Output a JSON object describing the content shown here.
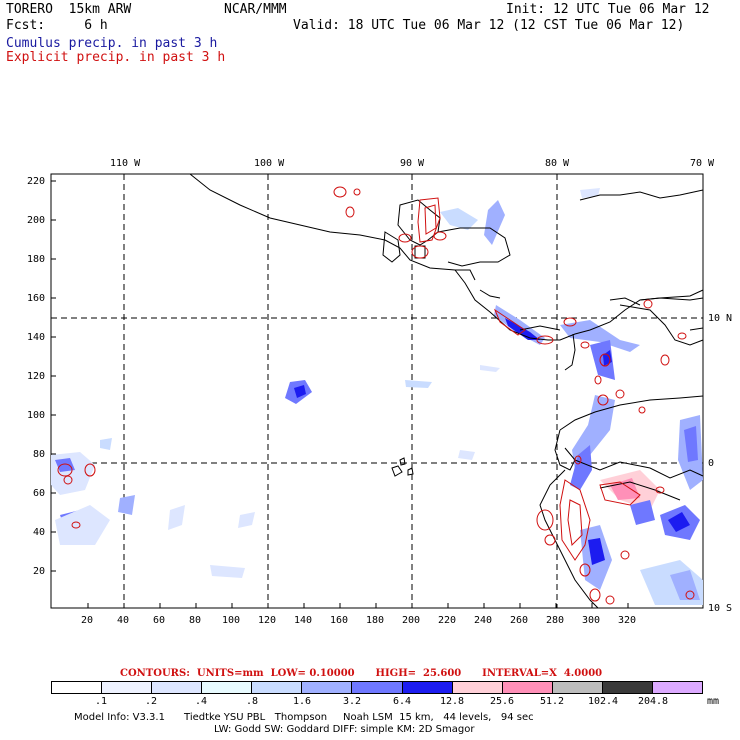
{
  "header": {
    "model": "TORERO  15km ARW",
    "org": "NCAR/MMM",
    "init": "Init: 12 UTC Tue 06 Mar 12",
    "fcst": "Fcst:     6 h",
    "valid": "Valid: 18 UTC Tue 06 Mar 12 (12 CST Tue 06 Mar 12)",
    "field1": "Cumulus precip. in past 3 h",
    "field2": "Explicit precip. in past 3 h"
  },
  "map": {
    "lon_labels": [
      "110 W",
      "100 W",
      "90 W",
      "80 W",
      "70 W"
    ],
    "lat_labels": [
      "10 N",
      "0",
      "10 S"
    ],
    "y_ticks": [
      "220",
      "200",
      "180",
      "160",
      "140",
      "120",
      "100",
      "80",
      "60",
      "40",
      "20"
    ],
    "x_ticks": [
      "20",
      "40",
      "60",
      "80",
      "100",
      "120",
      "140",
      "160",
      "180",
      "200",
      "220",
      "240",
      "260",
      "280",
      "300",
      "320"
    ]
  },
  "legend": {
    "contours": "CONTOURS:  UNITS=mm  LOW= 0.10000      HIGH=  25.600      INTERVAL=X  4.0000",
    "colorbar_labels": [
      ".1",
      ".2",
      ".4",
      ".8",
      "1.6",
      "3.2",
      "6.4",
      "12.8",
      "25.6",
      "51.2",
      "102.4",
      "204.8"
    ],
    "units": "mm",
    "colors": [
      "#ffffff",
      "#eef2ff",
      "#dde6ff",
      "#e8fbff",
      "#c9dcff",
      "#a0b0ff",
      "#6f78ff",
      "#1c1cf0",
      "#ffd0d8",
      "#ff90b8",
      "#bdbdbd",
      "#3a3a3a",
      "#dcaaff"
    ]
  },
  "footer": {
    "line1": "Model Info: V3.3.1      Tiedtke YSU PBL   Thompson     Noah LSM  15 km,   44 levels,   94 sec",
    "line2": "LW: Godd SW: Goddard DIFF: simple KM: 2D Smagor"
  }
}
